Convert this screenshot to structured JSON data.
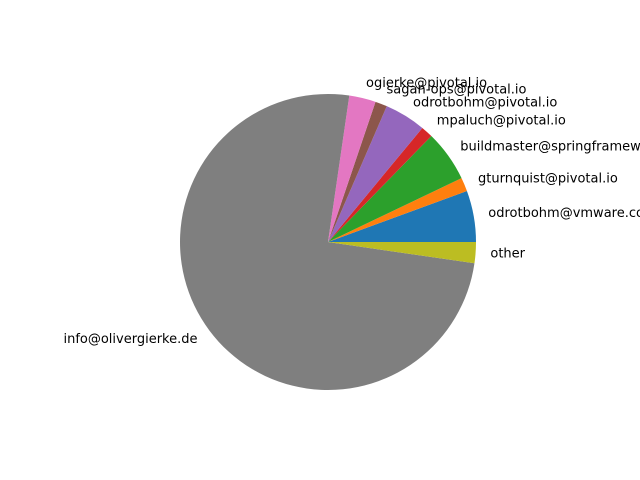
{
  "chart_data": {
    "type": "pie",
    "title": "",
    "start_angle_deg": 0,
    "direction": "counterclockwise",
    "slices": [
      {
        "label": "odrotbohm@vmware.com",
        "value": 5.6,
        "color": "#1f77b4"
      },
      {
        "label": "gturnquist@pivotal.io",
        "value": 1.5,
        "color": "#ff7f0e"
      },
      {
        "label": "buildmaster@springframework.org",
        "value": 5.6,
        "color": "#2ca02c"
      },
      {
        "label": "mpaluch@pivotal.io",
        "value": 1.3,
        "color": "#d62728"
      },
      {
        "label": "odrotbohm@pivotal.io",
        "value": 4.5,
        "color": "#9467bd"
      },
      {
        "label": "sagan-ops@pivotal.io",
        "value": 1.3,
        "color": "#8c564b"
      },
      {
        "label": "ogierke@pivotal.io",
        "value": 2.9,
        "color": "#e377c2"
      },
      {
        "label": "info@olivergierke.de",
        "value": 75.0,
        "color": "#7f7f7f"
      },
      {
        "label": "other",
        "value": 2.3,
        "color": "#bcbd22"
      }
    ]
  }
}
